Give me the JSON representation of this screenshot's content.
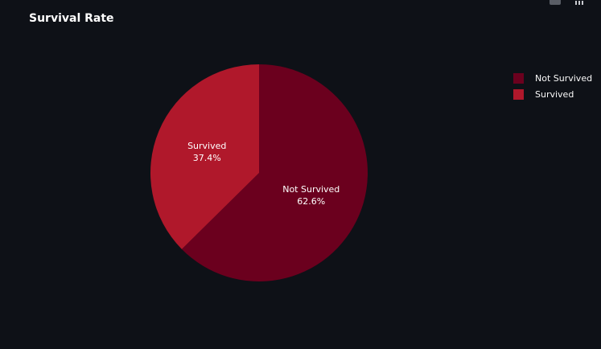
{
  "chart_data": {
    "type": "pie",
    "title": "Survival Rate",
    "slices": [
      {
        "label": "Not Survived",
        "value": 62.6,
        "percent_text": "62.6%",
        "color": "#6b001e"
      },
      {
        "label": "Survived",
        "value": 37.4,
        "percent_text": "37.4%",
        "color": "#b0182b"
      }
    ],
    "legend_position": "top-right"
  },
  "modebar": {
    "buttons": [
      {
        "icon": "camera-icon"
      },
      {
        "icon": "bar-chart-icon"
      }
    ]
  },
  "colors": {
    "background": "#0e1117",
    "text": "#fafafa"
  }
}
